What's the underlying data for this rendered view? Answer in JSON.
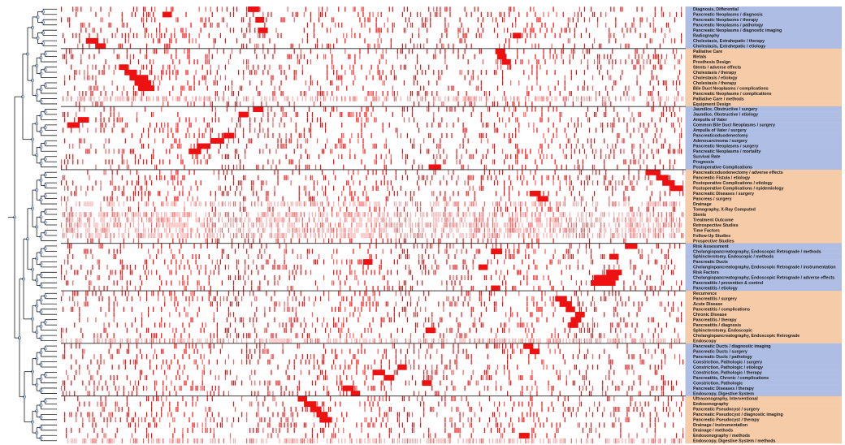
{
  "chart_data": {
    "type": "heatmap",
    "title": "",
    "xlabel": "",
    "ylabel": "",
    "colors": {
      "strong": "#ee1111",
      "medium": "#f26060",
      "light": "#f7b0b0",
      "group_blue": "#aebde3",
      "group_orange": "#f6cba8",
      "tree": "#1a1a1a",
      "node": "#5b7bb5"
    },
    "groups": [
      {
        "color": "blue",
        "rows": [
          "Diagnosis, Differential",
          "Pancreatic Neoplasms / diagnosis",
          "Pancreatic Neoplasms / therapy",
          "Pancreatic Neoplasms / pathology",
          "Pancreatic Neoplasms / diagnostic imaging",
          "Radiography",
          "Cholestasis, Extrahepatic / therapy",
          "Cholestasis, Extrahepatic / etiology"
        ]
      },
      {
        "color": "orange",
        "rows": [
          "Palliative Care",
          "Metals",
          "Prosthesis Design",
          "Stents / adverse effects",
          "Cholestasis / therapy",
          "Cholestasis / etiology",
          "Cholestasis / therapy",
          "Bile Duct Neoplasms / complications",
          "Pancreatic Neoplasms / complications",
          "Palliative Care / methods",
          "Equipment Design"
        ]
      },
      {
        "color": "blue",
        "rows": [
          "Jaundice, Obstructive / surgery",
          "Jaundice, Obstructive / etiology",
          "Ampulla of Vater",
          "Common Bile Duct Neoplasms / surgery",
          "Ampulla of Vater / surgery",
          "Pancreaticoduodenectomy",
          "Adenocarcinoma / surgery",
          "Pancreatic Neoplasms / surgery",
          "Pancreatic Neoplasms / mortality",
          "Survival Rate",
          "Prognosis",
          "Postoperative Complications"
        ]
      },
      {
        "color": "orange",
        "rows": [
          "Pancreaticoduodenectomy / adverse effects",
          "Pancreatic Fistula / etiology",
          "Postoperative Complications / etiology",
          "Postoperative Complications / epidemiology",
          "Pancreatic Diseases / surgery",
          "Pancreas / surgery",
          "Drainage",
          "Tomography, X-Ray Computed",
          "Stents",
          "Treatment Outcome",
          "Retrospective Studies",
          "Time Factors",
          "Follow-Up Studies",
          "Prospective Studies"
        ]
      },
      {
        "color": "blue",
        "rows": [
          "Risk Assessment",
          "Cholangiopancreatography, Endoscopic Retrograde / methods",
          "Sphincterotomy, Endoscopic / methods",
          "Pancreatic Ducts",
          "Cholangiopancreatography, Endoscopic Retrograde / instrumentation",
          "Risk Factors",
          "Cholangiopancreatography, Endoscopic Retrograde / adverse effects",
          "Pancreatitis / prevention & control",
          "Pancreatitis / etiology"
        ]
      },
      {
        "color": "orange",
        "rows": [
          "Recurrence",
          "Pancreatitis / surgery",
          "Acute Disease",
          "Pancreatitis / complications",
          "Chronic Disease",
          "Pancreatitis / therapy",
          "Pancreatitis / diagnosis",
          "Sphincterotomy, Endoscopic",
          "Cholangiopancreatography, Endoscopic Retrograde",
          "Endoscopy"
        ]
      },
      {
        "color": "blue",
        "rows": [
          "Pancreatic Ducts / diagnostic imaging",
          "Pancreatic Ducts / surgery",
          "Pancreatic Ducts / pathology",
          "Constriction, Pathologic / surgery",
          "Constriction, Pathologic / etiology",
          "Constriction, Pathologic / therapy",
          "Pancreatitis, Chronic / complications",
          "Constriction, Pathologic",
          "Pancreatic Diseases / therapy",
          "Endoscopy, Digestive System"
        ]
      },
      {
        "color": "orange",
        "rows": [
          "Ultrasonography, Interventional",
          "Endosonography",
          "Pancreatic Pseudocyst / surgery",
          "Pancreatic Pseudocyst / diagnostic imaging",
          "Pancreatic Pseudocyst / therapy",
          "Drainage / instrumentation",
          "Drainage / methods",
          "Endosonography / methods",
          "Endoscopy, Digestive System / methods"
        ]
      }
    ],
    "columns": 380,
    "hotspots": [
      {
        "row": "Diagnosis, Differential",
        "from": 0.3,
        "to": 0.318
      },
      {
        "row": "Pancreatic Neoplasms / diagnosis",
        "from": 0.163,
        "to": 0.178
      },
      {
        "row": "Pancreatic Neoplasms / therapy",
        "from": 0.312,
        "to": 0.326
      },
      {
        "row": "Pancreatic Neoplasms / diagnostic imaging",
        "from": 0.316,
        "to": 0.332
      },
      {
        "row": "Radiography",
        "from": 0.725,
        "to": 0.738
      },
      {
        "row": "Cholestasis, Extrahepatic / therapy",
        "from": 0.04,
        "to": 0.06
      },
      {
        "row": "Cholestasis, Extrahepatic / etiology",
        "from": 0.055,
        "to": 0.072
      },
      {
        "row": "Palliative Care",
        "from": 0.697,
        "to": 0.713
      },
      {
        "row": "Metals",
        "from": 0.7,
        "to": 0.715
      },
      {
        "row": "Prosthesis Design",
        "from": 0.708,
        "to": 0.722
      },
      {
        "row": "Stents / adverse effects",
        "from": 0.093,
        "to": 0.108
      },
      {
        "row": "Cholestasis / therapy",
        "from": 0.102,
        "to": 0.122
      },
      {
        "row": "Cholestasis / etiology",
        "from": 0.11,
        "to": 0.14
      },
      {
        "row": "Cholestasis / therapy",
        "from": 0.118,
        "to": 0.145
      },
      {
        "row": "Bile Duct Neoplasms / complications",
        "from": 0.125,
        "to": 0.15
      },
      {
        "row": "Jaundice, Obstructive / surgery",
        "from": 0.308,
        "to": 0.325
      },
      {
        "row": "Jaundice, Obstructive / etiology",
        "from": 0.285,
        "to": 0.3
      },
      {
        "row": "Ampulla of Vater",
        "from": 0.027,
        "to": 0.045
      },
      {
        "row": "Common Bile Duct Neoplasms / surgery",
        "from": 0.01,
        "to": 0.03
      },
      {
        "row": "Pancreaticoduodenectomy",
        "from": 0.26,
        "to": 0.278
      },
      {
        "row": "Adenocarcinoma / surgery",
        "from": 0.24,
        "to": 0.262
      },
      {
        "row": "Pancreatic Neoplasms / surgery",
        "from": 0.218,
        "to": 0.24
      },
      {
        "row": "Pancreatic Neoplasms / mortality",
        "from": 0.205,
        "to": 0.225
      },
      {
        "row": "Postoperative Complications",
        "from": 0.59,
        "to": 0.61
      },
      {
        "row": "Pancreaticoduodenectomy / adverse effects",
        "from": 0.938,
        "to": 0.962
      },
      {
        "row": "Pancreatic Fistula / etiology",
        "from": 0.955,
        "to": 0.975
      },
      {
        "row": "Postoperative Complications / etiology",
        "from": 0.965,
        "to": 0.985
      },
      {
        "row": "Postoperative Complications / epidemiology",
        "from": 0.978,
        "to": 0.998
      },
      {
        "row": "Pancreatic Diseases / surgery",
        "from": 0.752,
        "to": 0.77
      },
      {
        "row": "Pancreas / surgery",
        "from": 0.765,
        "to": 0.782
      },
      {
        "row": "Risk Assessment",
        "from": 0.905,
        "to": 0.925
      },
      {
        "row": "Cholangiopancreatography, Endoscopic Retrograde / methods",
        "from": 0.69,
        "to": 0.708
      },
      {
        "row": "Sphincterotomy, Endoscopic / methods",
        "from": 0.88,
        "to": 0.895
      },
      {
        "row": "Pancreatic Ducts",
        "from": 0.485,
        "to": 0.5
      },
      {
        "row": "Cholangiopancreatography, Endoscopic Retrograde / instrumentation",
        "from": 0.67,
        "to": 0.685
      },
      {
        "row": "Risk Factors",
        "from": 0.875,
        "to": 0.9
      },
      {
        "row": "Cholangiopancreatography, Endoscopic Retrograde / adverse effects",
        "from": 0.855,
        "to": 0.895
      },
      {
        "row": "Pancreatitis / prevention & control",
        "from": 0.85,
        "to": 0.89
      },
      {
        "row": "Pancreatitis / etiology",
        "from": 0.69,
        "to": 0.705
      },
      {
        "row": "Pancreatitis / surgery",
        "from": 0.793,
        "to": 0.812
      },
      {
        "row": "Acute Disease",
        "from": 0.8,
        "to": 0.82
      },
      {
        "row": "Pancreatitis / complications",
        "from": 0.81,
        "to": 0.825
      },
      {
        "row": "Chronic Disease",
        "from": 0.825,
        "to": 0.84
      },
      {
        "row": "Pancreatitis / therapy",
        "from": 0.818,
        "to": 0.835
      },
      {
        "row": "Pancreatitis / diagnosis",
        "from": 0.815,
        "to": 0.83
      },
      {
        "row": "Sphincterotomy, Endoscopic",
        "from": 0.585,
        "to": 0.6
      },
      {
        "row": "Pancreatic Ducts / diagnostic imaging",
        "from": 0.742,
        "to": 0.758
      },
      {
        "row": "Pancreatic Ducts / surgery",
        "from": 0.752,
        "to": 0.768
      },
      {
        "row": "Constriction, Pathologic / etiology",
        "from": 0.54,
        "to": 0.555
      },
      {
        "row": "Constriction, Pathologic / therapy",
        "from": 0.5,
        "to": 0.52
      },
      {
        "row": "Pancreatitis, Chronic / complications",
        "from": 0.518,
        "to": 0.535
      },
      {
        "row": "Constriction, Pathologic",
        "from": 0.58,
        "to": 0.595
      },
      {
        "row": "Pancreatic Diseases / therapy",
        "from": 0.452,
        "to": 0.47
      },
      {
        "row": "Endoscopy, Digestive System",
        "from": 0.465,
        "to": 0.48
      },
      {
        "row": "Ultrasonography, Interventional",
        "from": 0.38,
        "to": 0.395
      },
      {
        "row": "Endosonography",
        "from": 0.39,
        "to": 0.41
      },
      {
        "row": "Pancreatic Pseudocyst / surgery",
        "from": 0.4,
        "to": 0.418
      },
      {
        "row": "Pancreatic Pseudocyst / diagnostic imaging",
        "from": 0.41,
        "to": 0.428
      },
      {
        "row": "Pancreatic Pseudocyst / therapy",
        "from": 0.415,
        "to": 0.435
      },
      {
        "row": "Endosonography / methods",
        "from": 0.735,
        "to": 0.752
      }
    ],
    "uniform_rows": [
      {
        "row": "Palliative Care / methods",
        "intensity": "light"
      },
      {
        "row": "Drainage",
        "intensity": "light"
      },
      {
        "row": "Stents",
        "intensity": "light"
      },
      {
        "row": "Treatment Outcome",
        "intensity": "light"
      },
      {
        "row": "Retrospective Studies",
        "intensity": "light"
      },
      {
        "row": "Time Factors",
        "intensity": "light"
      },
      {
        "row": "Follow-Up Studies",
        "intensity": "light"
      },
      {
        "row": "Endoscopy",
        "intensity": "light"
      },
      {
        "row": "Endoscopy, Digestive System / methods",
        "intensity": "light"
      }
    ]
  }
}
